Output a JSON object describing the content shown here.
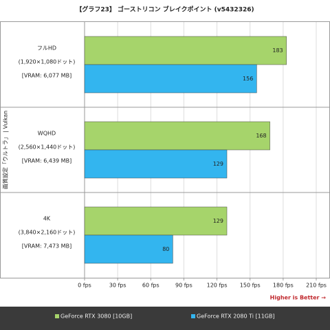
{
  "chart_data": {
    "type": "barh",
    "title": "【グラフ23】 ゴーストリコン ブレイクポイント (v5432326)",
    "y_label": "画質設定「ウルトラ」 | Vulkan",
    "categories": [
      "フルHD",
      "WQHD",
      "4K"
    ],
    "category_details": [
      [
        "(1,920×1,080ドット)",
        "[VRAM: 6,077 MB]"
      ],
      [
        "(2,560×1,440ドット)",
        "[VRAM: 6,439 MB]"
      ],
      [
        "(3,840×2,160ドット)",
        "[VRAM: 7,473 MB]"
      ]
    ],
    "series": [
      {
        "name": "GeForce RTX 3080 [10GB]",
        "color": "#a6d46b",
        "values": [
          183,
          168,
          129
        ]
      },
      {
        "name": "GeForce RTX 2080 Ti [11GB]",
        "color": "#33b5ef",
        "values": [
          156,
          129,
          80
        ]
      }
    ],
    "xlim": [
      0,
      210
    ],
    "xticks": [
      {
        "value": 0,
        "label": "0 fps"
      },
      {
        "value": 30,
        "label": "30 fps"
      },
      {
        "value": 60,
        "label": "60 fps"
      },
      {
        "value": 90,
        "label": "90 fps"
      },
      {
        "value": 120,
        "label": "120 fps"
      },
      {
        "value": 150,
        "label": "150 fps"
      },
      {
        "value": 180,
        "label": "180 fps"
      },
      {
        "value": 210,
        "label": "210 fps"
      }
    ],
    "grid": true,
    "annotation": "Higher is Better →"
  }
}
